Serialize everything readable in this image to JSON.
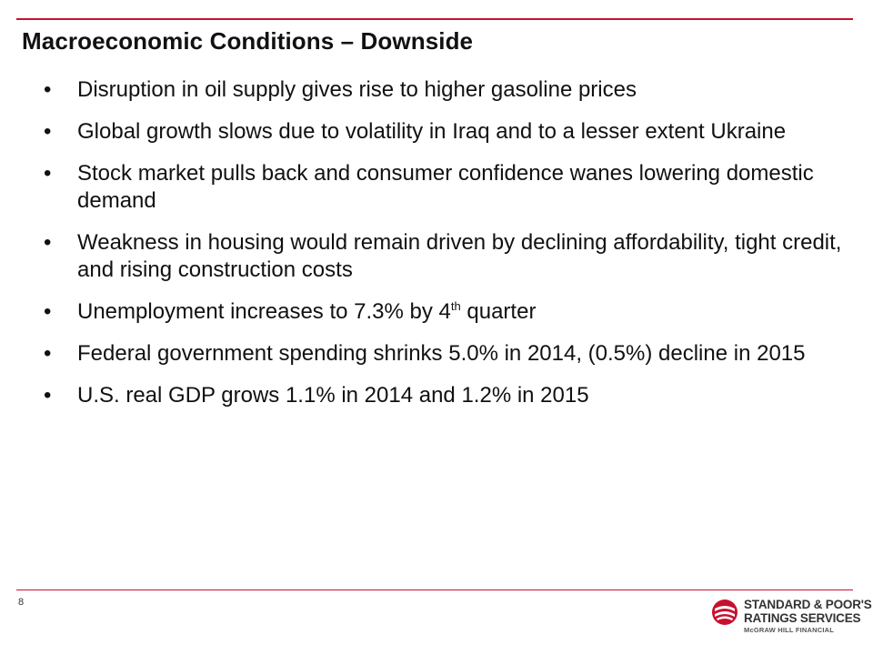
{
  "slide": {
    "title": "Macroeconomic Conditions – Downside",
    "bullet_symbol": "•",
    "bullets": [
      {
        "text": "Disruption in oil supply gives rise to higher gasoline prices"
      },
      {
        "text": "Global growth slows due to volatility in Iraq and to a lesser extent Ukraine"
      },
      {
        "text": "Stock market pulls back and consumer confidence wanes lowering domestic demand"
      },
      {
        "text": "Weakness in housing would remain driven by declining affordability, tight credit, and rising construction costs"
      },
      {
        "text": "Unemployment increases to 7.3% by 4",
        "superscript": "th",
        "text_after": " quarter"
      },
      {
        "text": "Federal government spending shrinks 5.0% in 2014, (0.5%) decline in 2015"
      },
      {
        "text": "U.S. real GDP grows 1.1% in 2014 and 1.2% in 2015"
      }
    ],
    "page_number": "8"
  },
  "logo": {
    "line1": "STANDARD & POOR'S",
    "line2": "RATINGS SERVICES",
    "line3": "McGRAW HILL FINANCIAL",
    "icon": "sp-logo-mark"
  },
  "colors": {
    "accent_red": "#c8102e",
    "text": "#111111",
    "logo_gray": "#333333"
  }
}
